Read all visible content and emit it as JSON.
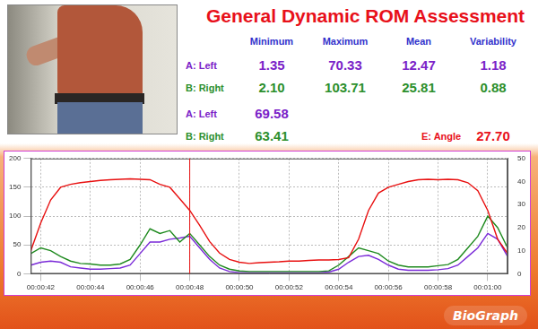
{
  "header": {
    "title": "General Dynamic ROM Assessment",
    "logo": "BioGraph"
  },
  "stats": {
    "columns": [
      "Minimum",
      "Maximum",
      "Mean",
      "Variability"
    ],
    "rows": [
      {
        "label": "A: Left",
        "color": "#7a22c8",
        "values": [
          "1.35",
          "70.33",
          "12.47",
          "1.18"
        ]
      },
      {
        "label": "B: Right",
        "color": "#2c8f2c",
        "values": [
          "2.10",
          "103.71",
          "25.81",
          "0.88"
        ]
      }
    ],
    "current": [
      {
        "label": "A: Left",
        "color": "#7a22c8",
        "value": "69.58"
      },
      {
        "label": "B: Right",
        "color": "#2c8f2c",
        "value": "63.41"
      }
    ],
    "angle": {
      "label": "E: Angle",
      "color": "#e8101a",
      "value": "27.70"
    }
  },
  "chart_data": {
    "type": "line",
    "grid": true,
    "cursor_x": 48,
    "x": [
      41.6,
      42.0,
      42.4,
      42.8,
      43.2,
      43.6,
      44.0,
      44.4,
      44.8,
      45.2,
      45.6,
      46.0,
      46.4,
      46.8,
      47.2,
      47.6,
      48.0,
      48.4,
      48.8,
      49.2,
      49.6,
      50.0,
      50.4,
      50.8,
      51.2,
      51.6,
      52.0,
      52.4,
      52.8,
      53.2,
      53.6,
      54.0,
      54.4,
      54.8,
      55.2,
      55.6,
      56.0,
      56.4,
      56.8,
      57.2,
      57.6,
      58.0,
      58.4,
      58.8,
      59.2,
      59.6,
      60.0,
      60.4,
      60.8
    ],
    "xlim": [
      41.6,
      60.8
    ],
    "xticks": [
      {
        "value": 42,
        "label": "00:00:42"
      },
      {
        "value": 44,
        "label": "00:00:44"
      },
      {
        "value": 46,
        "label": "00:00:46"
      },
      {
        "value": 48,
        "label": "00:00:48"
      },
      {
        "value": 50,
        "label": "00:00:50"
      },
      {
        "value": 52,
        "label": "00:00:52"
      },
      {
        "value": 54,
        "label": "00:00:54"
      },
      {
        "value": 56,
        "label": "00:00:56"
      },
      {
        "value": 58,
        "label": "00:00:58"
      },
      {
        "value": 60,
        "label": "00:01:00"
      }
    ],
    "ylim": [
      0,
      200
    ],
    "yticks": [
      0,
      50,
      100,
      150,
      200
    ],
    "y2lim": [
      0,
      50
    ],
    "y2ticks": [
      0,
      10,
      20,
      30,
      40,
      50
    ],
    "series": [
      {
        "color": "#e81010",
        "axis": "y2",
        "values": [
          10,
          22,
          32,
          37.5,
          38.8,
          39.5,
          40,
          40.5,
          40.8,
          41,
          41.2,
          41,
          40.8,
          38.8,
          37.5,
          32.5,
          27.5,
          21,
          14,
          9,
          6.2,
          5,
          4.5,
          4.8,
          5,
          5.2,
          5.5,
          5.5,
          5.8,
          6,
          6,
          6.2,
          7,
          15,
          27.5,
          35,
          37.5,
          38.8,
          40,
          40.8,
          41,
          40.8,
          41,
          40.8,
          39.5,
          36,
          27.5,
          15,
          8.8
        ]
      },
      {
        "color": "#1f8a1f",
        "values": [
          35,
          45,
          40,
          30,
          22,
          18,
          17,
          15,
          15,
          17,
          25,
          50,
          78,
          70,
          75,
          55,
          70,
          50,
          30,
          15,
          8,
          5,
          4,
          4,
          4,
          4,
          4,
          4,
          4,
          4,
          5,
          15,
          30,
          45,
          40,
          35,
          22,
          15,
          12,
          12,
          12,
          14,
          16,
          25,
          45,
          65,
          100,
          80,
          45
        ]
      },
      {
        "color": "#7a2ad8",
        "values": [
          15,
          20,
          22,
          20,
          12,
          10,
          8,
          8,
          9,
          10,
          15,
          35,
          55,
          55,
          60,
          62,
          65,
          45,
          25,
          10,
          4,
          2,
          2,
          2,
          2,
          2,
          2,
          2,
          2,
          2,
          3,
          8,
          20,
          30,
          32,
          25,
          15,
          8,
          6,
          6,
          6,
          7,
          9,
          15,
          30,
          45,
          70,
          60,
          30
        ]
      }
    ]
  }
}
